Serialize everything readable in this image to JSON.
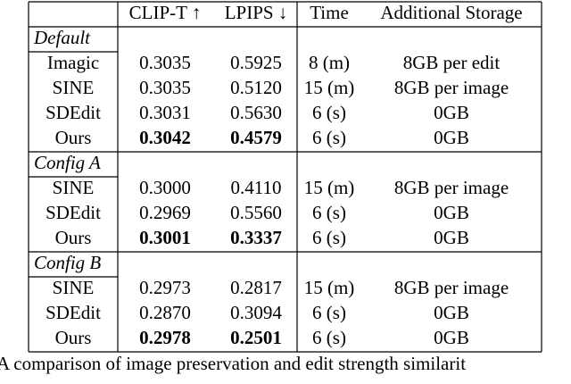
{
  "table": {
    "header": [
      "CLIP-T ↑",
      "LPIPS ↓",
      "Time",
      "Additional Storage"
    ],
    "groups": [
      {
        "label": "Default",
        "rows": [
          [
            "Imagic",
            "0.3035",
            "0.5925",
            "8 (m)",
            "8GB per edit"
          ],
          [
            "SINE",
            "0.3035",
            "0.5120",
            "15 (m)",
            "8GB per image"
          ],
          [
            "SDEdit",
            "0.3031",
            "0.5630",
            "6 (s)",
            "0GB"
          ],
          [
            "Ours",
            "0.3042",
            "0.4579",
            "6 (s)",
            "0GB"
          ]
        ]
      },
      {
        "label": "Config A",
        "rows": [
          [
            "SINE",
            "0.3000",
            "0.4110",
            "15 (m)",
            "8GB per image"
          ],
          [
            "SDEdit",
            "0.2969",
            "0.5560",
            "6 (s)",
            "0GB"
          ],
          [
            "Ours",
            "0.3001",
            "0.3337",
            "6 (s)",
            "0GB"
          ]
        ]
      },
      {
        "label": "Config B",
        "rows": [
          [
            "SINE",
            "0.2973",
            "0.2817",
            "15 (m)",
            "8GB per image"
          ],
          [
            "SDEdit",
            "0.2870",
            "0.3094",
            "6 (s)",
            "0GB"
          ],
          [
            "Ours",
            "0.2978",
            "0.2501",
            "6 (s)",
            "0GB"
          ]
        ]
      }
    ]
  },
  "caption": "A comparison of image preservation and edit strength similarit"
}
